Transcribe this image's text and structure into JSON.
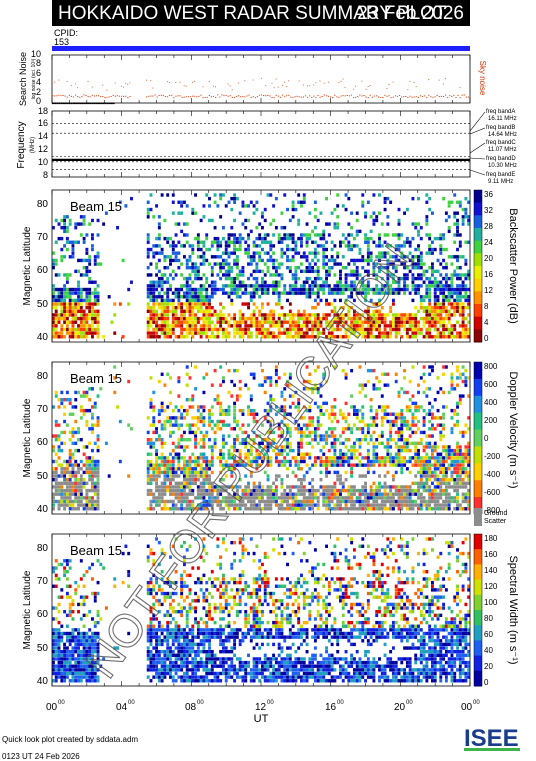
{
  "header": {
    "title": "HOKKAIDO WEST RADAR SUMMARY PLOT",
    "date": "23 Feb 2026"
  },
  "cpid": {
    "label": "CPID:",
    "value": "153"
  },
  "noise_panel": {
    "ylabel": "Search Noise",
    "ylabel_sub": "log noise (sci. 10³)",
    "yticks": [
      "0",
      "2",
      "4",
      "6",
      "8",
      "10"
    ],
    "legend": "Sky noise"
  },
  "freq_panel": {
    "ylabel": "Frequency",
    "ylabel_sub": "(MHz)",
    "yticks": [
      "8",
      "10",
      "12",
      "14",
      "16",
      "18"
    ],
    "bands": [
      {
        "label": "freq bandA",
        "value": "16.11 MHz"
      },
      {
        "label": "freq bandB",
        "value": "14.64 MHz"
      },
      {
        "label": "freq bandC",
        "value": "11.07 MHz"
      },
      {
        "label": "freq bandD",
        "value": "10.30 MHz"
      },
      {
        "label": "freq bandE",
        "value": "9.11 MHz"
      }
    ]
  },
  "panels": [
    {
      "beam": "Beam 15",
      "ylabel": "Magnetic Latitude",
      "yticks": [
        "40",
        "50",
        "60",
        "70",
        "80"
      ],
      "cbar_label": "Backscatter Power (dB)",
      "cbar_ticks": [
        "0",
        "4",
        "8",
        "12",
        "16",
        "20",
        "24",
        "28",
        "32",
        "36"
      ]
    },
    {
      "beam": "Beam 15",
      "ylabel": "Magnetic Latitude",
      "yticks": [
        "40",
        "50",
        "60",
        "70",
        "80"
      ],
      "cbar_label": "Doppler Velocity (m s⁻¹)",
      "cbar_ticks": [
        "-800",
        "-600",
        "-400",
        "-200",
        "0",
        "200",
        "400",
        "600",
        "800"
      ],
      "ground_label": "Ground",
      "ground_label2": "Scatter"
    },
    {
      "beam": "Beam 15",
      "ylabel": "Magnetic Latitude",
      "yticks": [
        "40",
        "50",
        "60",
        "70",
        "80"
      ],
      "cbar_label": "Spectral Width (m s⁻¹)",
      "cbar_ticks": [
        "0",
        "20",
        "40",
        "60",
        "80",
        "100",
        "120",
        "140",
        "160",
        "180"
      ]
    }
  ],
  "xaxis": {
    "label": "UT",
    "ticks": [
      "00",
      "04",
      "08",
      "12",
      "16",
      "20",
      "00"
    ],
    "tick_sup": "00"
  },
  "watermark": "NOT FOR PUBLICATION",
  "footer": {
    "created": "Quick look plot created by sddata.adm",
    "time": "0123 UT 24 Feb 2026"
  },
  "logo": "ISEE",
  "chart_data": {
    "type": "heatmap",
    "x_range_hours": [
      0,
      24
    ],
    "data_gaps_hours": [
      [
        4.5,
        5.4
      ]
    ],
    "noise": {
      "ylim": [
        0,
        10
      ],
      "sky_noise_level": 1.5,
      "search_noise_level": 0.1
    },
    "frequency": {
      "ylim": [
        8,
        18
      ],
      "operating_mhz": 10.6
    },
    "latitude_range": [
      38,
      84
    ],
    "power_db_range": [
      0,
      38
    ],
    "velocity_range": [
      -900,
      900
    ],
    "width_range": [
      0,
      190
    ]
  }
}
